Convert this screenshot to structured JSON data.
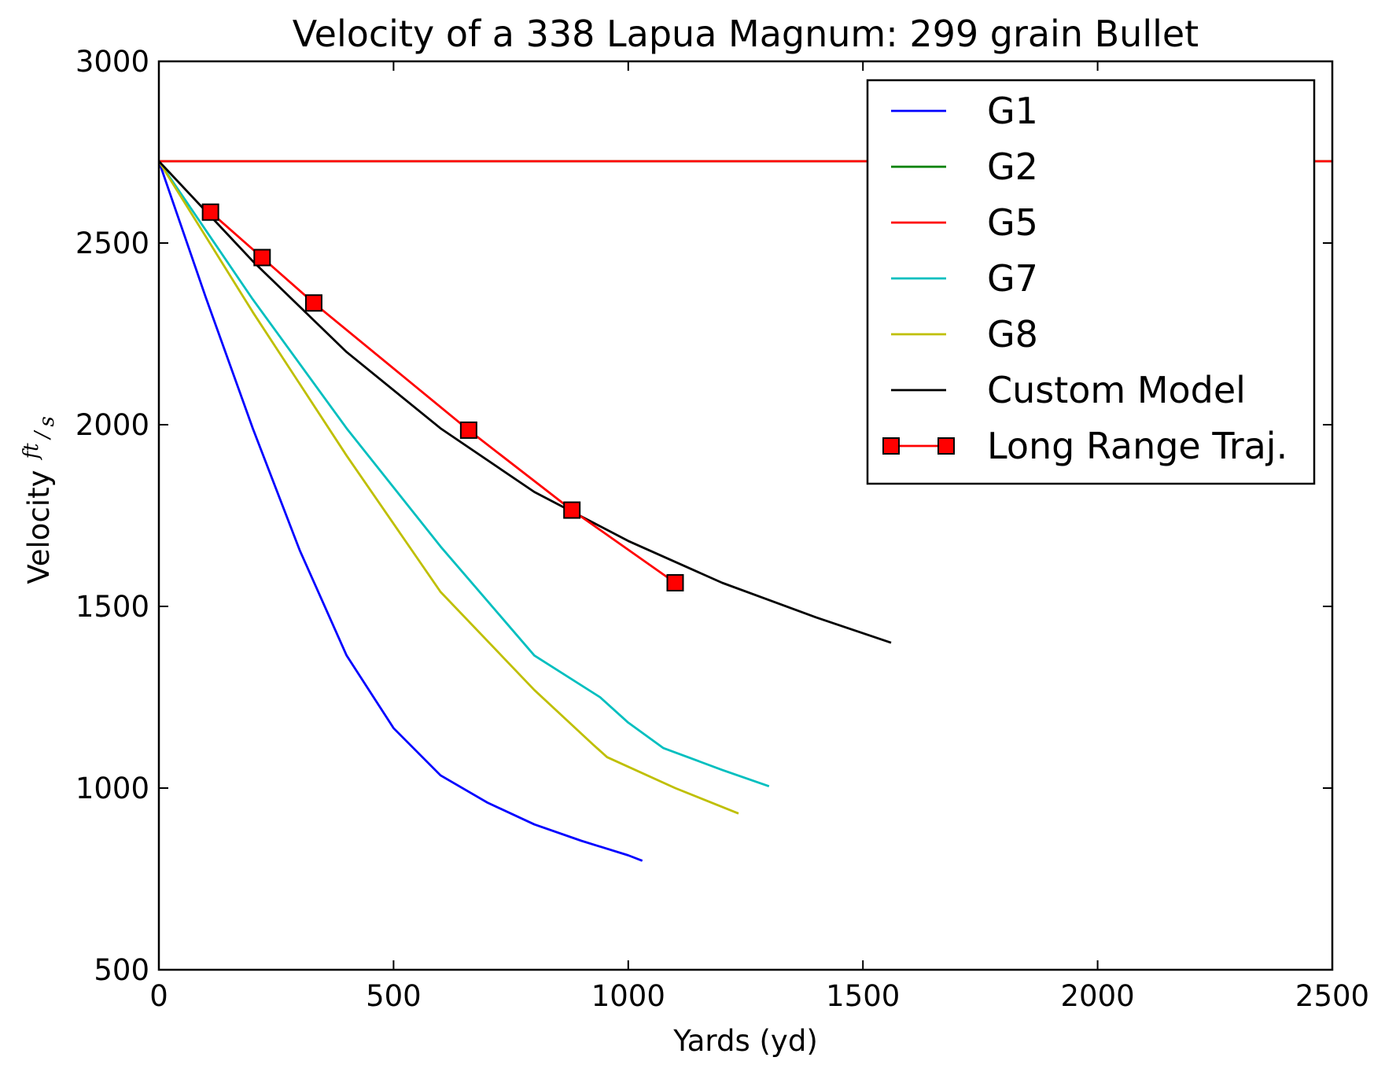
{
  "chart_data": {
    "type": "line",
    "title": "Velocity of a 338 Lapua Magnum: 299 grain Bullet",
    "xlabel": "Yards (yd)",
    "ylabel": "Velocity",
    "ylabel_unit": {
      "numerator": "ft",
      "slash": "/",
      "denominator": "s"
    },
    "xlim": [
      0,
      2500
    ],
    "ylim": [
      500,
      3000
    ],
    "xticks": [
      "0",
      "500",
      "1000",
      "1500",
      "2000",
      "2500"
    ],
    "yticks": [
      "500",
      "1000",
      "1500",
      "2000",
      "2500",
      "3000"
    ],
    "grid": false,
    "legend_position": "top-right",
    "series": [
      {
        "name": "G1",
        "color": "#0000ff",
        "marker": "none",
        "x": [
          0,
          100,
          200,
          300,
          400,
          500,
          600,
          700,
          800,
          900,
          1000,
          1030
        ],
        "y": [
          2725,
          2350,
          1990,
          1655,
          1365,
          1165,
          1035,
          960,
          900,
          855,
          815,
          800
        ]
      },
      {
        "name": "G2",
        "color": "#008000",
        "marker": "none",
        "x": [
          0,
          2500
        ],
        "y": [
          2725,
          2725
        ]
      },
      {
        "name": "G5",
        "color": "#ff0000",
        "marker": "none",
        "x": [
          0,
          2500
        ],
        "y": [
          2725,
          2725
        ]
      },
      {
        "name": "G7",
        "color": "#00bfbf",
        "marker": "none",
        "x": [
          0,
          200,
          400,
          600,
          800,
          940,
          1000,
          1075,
          1200,
          1300
        ],
        "y": [
          2725,
          2345,
          1990,
          1665,
          1365,
          1250,
          1180,
          1110,
          1050,
          1005
        ]
      },
      {
        "name": "G8",
        "color": "#bfbf00",
        "marker": "none",
        "x": [
          0,
          200,
          400,
          600,
          800,
          925,
          955,
          1100,
          1235
        ],
        "y": [
          2725,
          2310,
          1915,
          1540,
          1270,
          1120,
          1085,
          1000,
          930
        ]
      },
      {
        "name": "Custom Model",
        "color": "#000000",
        "marker": "none",
        "x": [
          0,
          200,
          400,
          600,
          800,
          1000,
          1200,
          1400,
          1560
        ],
        "y": [
          2725,
          2450,
          2200,
          1990,
          1815,
          1680,
          1565,
          1470,
          1400
        ]
      },
      {
        "name": "Long Range Traj.",
        "color": "#ff0000",
        "marker": "square",
        "x": [
          110,
          220,
          330,
          660,
          880,
          1100
        ],
        "y": [
          2585,
          2460,
          2335,
          1985,
          1765,
          1565
        ]
      }
    ]
  }
}
